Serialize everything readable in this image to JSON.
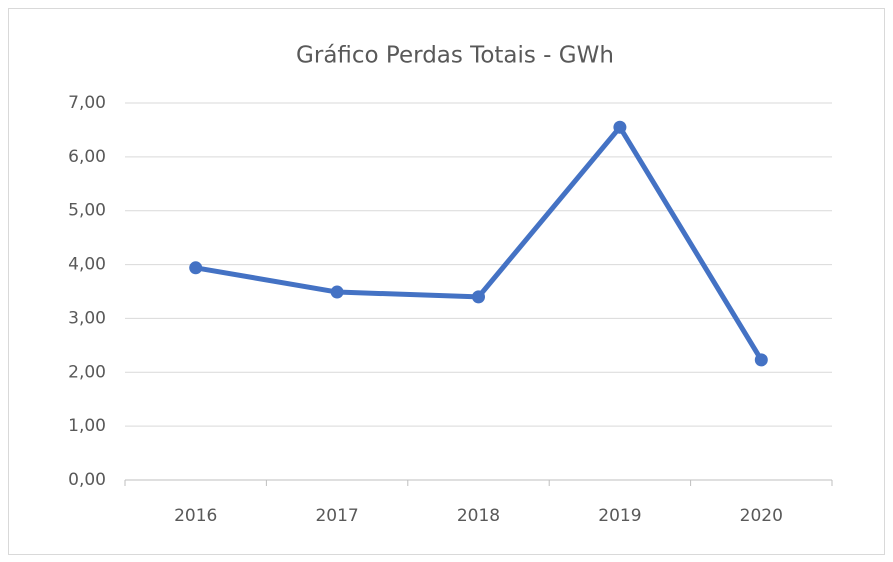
{
  "chart_data": {
    "type": "line",
    "title": "Gráfico Perdas Totais - GWh",
    "categories": [
      "2016",
      "2017",
      "2018",
      "2019",
      "2020"
    ],
    "series": [
      {
        "name": "Perdas Totais",
        "color": "#4472c4",
        "values": [
          3.94,
          3.49,
          3.4,
          6.55,
          2.23
        ]
      }
    ],
    "ylim": [
      0,
      7
    ],
    "yticks": [
      {
        "value": 0,
        "label": "0,00"
      },
      {
        "value": 1,
        "label": "1,00"
      },
      {
        "value": 2,
        "label": "2,00"
      },
      {
        "value": 3,
        "label": "3,00"
      },
      {
        "value": 4,
        "label": "4,00"
      },
      {
        "value": 5,
        "label": "5,00"
      },
      {
        "value": 6,
        "label": "6,00"
      },
      {
        "value": 7,
        "label": "7,00"
      }
    ],
    "grid": true
  }
}
